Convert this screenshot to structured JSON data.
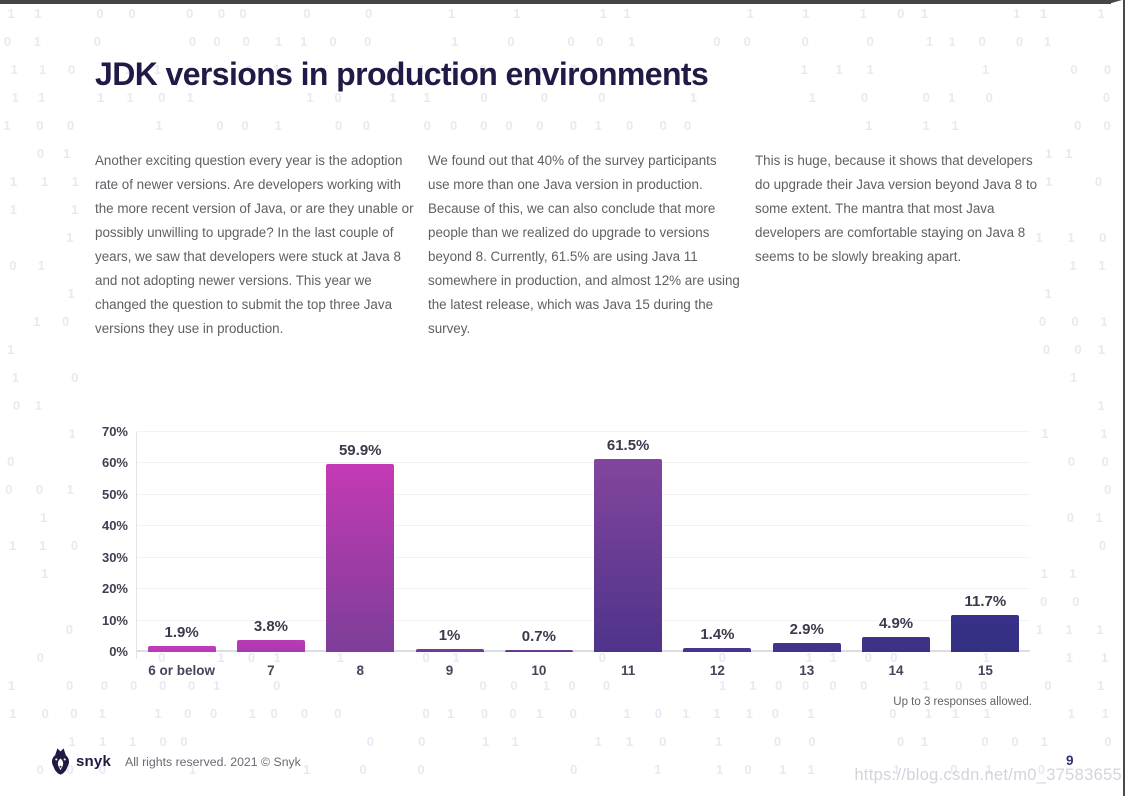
{
  "page": {
    "title": "JDK versions in production environments",
    "columns": [
      {
        "text": "Another exciting question every year is the adoption rate of newer versions. Are developers working with the more recent version of Java, or are they unable or possibly unwilling to upgrade? In the last couple of years, we saw that developers were stuck at Java 8 and not adopting newer versions. This year we changed the question to submit the top three Java versions they use in production."
      },
      {
        "text": "We found out that 40% of the survey participants use more than one Java version in production. Because of this, we can also conclude that more people than we realized do upgrade to versions beyond 8. Currently, 61.5% are using Java 11 somewhere in production, and almost 12% are using the latest release, which was Java 15 during the survey."
      },
      {
        "text": "This is huge, because it shows that developers do upgrade their Java version beyond Java 8 to some extent. The mantra that most Java developers are comfortable staying on Java 8 seems to be slowly breaking apart."
      }
    ],
    "footer": {
      "brand": "snyk",
      "rights": "All rights reserved. 2021 © Snyk",
      "page_number": "9"
    },
    "watermark": "https://blog.csdn.net/m0_37583655"
  },
  "chart_data": {
    "type": "bar",
    "title": "",
    "xlabel": "",
    "ylabel": "",
    "categories": [
      "6 or below",
      "7",
      "8",
      "9",
      "10",
      "11",
      "12",
      "13",
      "14",
      "15"
    ],
    "values": [
      1.9,
      3.8,
      59.9,
      1,
      0.7,
      61.5,
      1.4,
      2.9,
      4.9,
      11.7
    ],
    "value_labels": [
      "1.9%",
      "3.8%",
      "59.9%",
      "1%",
      "0.7%",
      "61.5%",
      "1.4%",
      "2.9%",
      "4.9%",
      "11.7%"
    ],
    "y_ticks": [
      "0%",
      "10%",
      "20%",
      "30%",
      "40%",
      "50%",
      "60%",
      "70%"
    ],
    "ylim": [
      0,
      70
    ],
    "grid": true,
    "legend": false,
    "note": "Up to 3 responses allowed.",
    "bar_colors": [
      {
        "top": "#c03cba",
        "bottom": "#b83ab6"
      },
      {
        "top": "#bb3bb7",
        "bottom": "#a839ae"
      },
      {
        "top": "#c43ab5",
        "bottom": "#7c3e98"
      },
      {
        "top": "#703d9b",
        "bottom": "#6a3b97"
      },
      {
        "top": "#663a93",
        "bottom": "#613990"
      },
      {
        "top": "#83459e",
        "bottom": "#4f338a"
      },
      {
        "top": "#4b3591",
        "bottom": "#48348e"
      },
      {
        "top": "#45338c",
        "bottom": "#42328a"
      },
      {
        "top": "#3f3288",
        "bottom": "#3c3186"
      },
      {
        "top": "#373089",
        "bottom": "#333082"
      }
    ]
  },
  "background": {
    "pattern_chars": [
      "0",
      "1"
    ],
    "pattern_color": "#e9e9f3"
  },
  "colors": {
    "title": "#201b46",
    "body_text": "#5f6065",
    "axis_text": "#3f3f51",
    "brand_navy": "#1f1b45"
  }
}
